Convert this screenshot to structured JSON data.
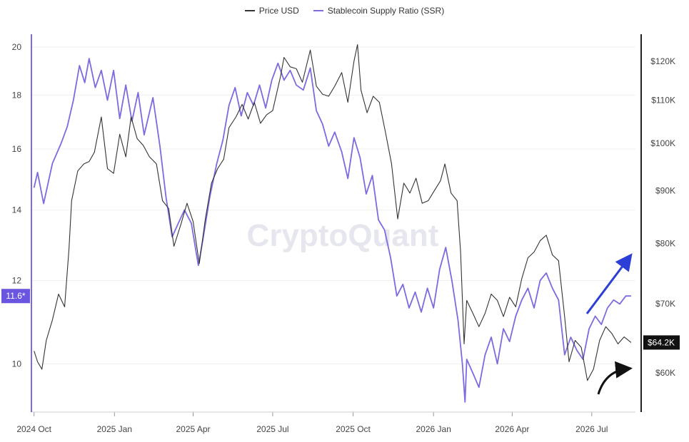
{
  "chart_data": {
    "type": "line",
    "title": "",
    "watermark": "CryptoQuant",
    "legend_position": "top-center",
    "legend": [
      {
        "label": "Price USD",
        "color": "#333333"
      },
      {
        "label": "Stablecoin Supply Ratio (SSR)",
        "color": "#7b6be0"
      }
    ],
    "x_ticks": [
      "2024 Oct",
      "2025 Jan",
      "2025 Apr",
      "2025 Jul",
      "2025 Oct",
      "2026 Jan",
      "2026 Apr",
      "2026 Jul"
    ],
    "x_range": [
      "2024-09-28",
      "2026-08-20"
    ],
    "y_left": {
      "ticks": [
        10,
        12,
        14,
        16,
        18,
        20
      ],
      "range": [
        9.0,
        20.5
      ],
      "log": true
    },
    "y_right": {
      "ticks": [
        "$60K",
        "$70K",
        "$80K",
        "$90K",
        "$100K",
        "$110K",
        "$120K"
      ],
      "tick_values": [
        60000,
        70000,
        80000,
        90000,
        100000,
        110000,
        120000
      ],
      "range": [
        55000,
        127000
      ],
      "log": true
    },
    "left_current_label": "11.6*",
    "right_current_label": "$64.2K",
    "grid": true,
    "series": [
      {
        "name": "Stablecoin Supply Ratio (SSR)",
        "axis": "left",
        "color": "#7b6be0",
        "points": [
          [
            "2024-10-01",
            14.7
          ],
          [
            "2024-10-05",
            15.2
          ],
          [
            "2024-10-12",
            14.2
          ],
          [
            "2024-10-22",
            15.5
          ],
          [
            "2024-11-01",
            16.2
          ],
          [
            "2024-11-08",
            16.8
          ],
          [
            "2024-11-15",
            17.8
          ],
          [
            "2024-11-22",
            19.2
          ],
          [
            "2024-11-28",
            18.5
          ],
          [
            "2024-12-03",
            19.5
          ],
          [
            "2024-12-10",
            18.3
          ],
          [
            "2024-12-17",
            19.0
          ],
          [
            "2024-12-24",
            17.8
          ],
          [
            "2024-12-31",
            19.0
          ],
          [
            "2025-01-07",
            17.1
          ],
          [
            "2025-01-14",
            18.4
          ],
          [
            "2025-01-21",
            17.0
          ],
          [
            "2025-01-28",
            18.1
          ],
          [
            "2025-02-04",
            16.5
          ],
          [
            "2025-02-14",
            17.9
          ],
          [
            "2025-02-22",
            16.1
          ],
          [
            "2025-03-01",
            14.4
          ],
          [
            "2025-03-08",
            13.2
          ],
          [
            "2025-03-15",
            13.6
          ],
          [
            "2025-03-22",
            14.0
          ],
          [
            "2025-03-30",
            13.6
          ],
          [
            "2025-04-07",
            12.4
          ],
          [
            "2025-04-12",
            13.1
          ],
          [
            "2025-04-20",
            14.4
          ],
          [
            "2025-04-28",
            15.5
          ],
          [
            "2025-05-05",
            16.3
          ],
          [
            "2025-05-12",
            17.6
          ],
          [
            "2025-05-19",
            18.3
          ],
          [
            "2025-05-26",
            17.2
          ],
          [
            "2025-06-02",
            18.1
          ],
          [
            "2025-06-09",
            17.6
          ],
          [
            "2025-06-16",
            18.4
          ],
          [
            "2025-06-23",
            17.5
          ],
          [
            "2025-06-30",
            18.6
          ],
          [
            "2025-07-07",
            19.3
          ],
          [
            "2025-07-14",
            18.6
          ],
          [
            "2025-07-21",
            19.0
          ],
          [
            "2025-07-28",
            18.4
          ],
          [
            "2025-08-05",
            18.2
          ],
          [
            "2025-08-13",
            19.1
          ],
          [
            "2025-08-20",
            17.4
          ],
          [
            "2025-08-27",
            16.9
          ],
          [
            "2025-09-03",
            16.1
          ],
          [
            "2025-09-10",
            16.6
          ],
          [
            "2025-09-18",
            15.9
          ],
          [
            "2025-09-25",
            15.0
          ],
          [
            "2025-10-02",
            16.4
          ],
          [
            "2025-10-09",
            15.7
          ],
          [
            "2025-10-16",
            14.5
          ],
          [
            "2025-10-23",
            15.1
          ],
          [
            "2025-10-30",
            13.7
          ],
          [
            "2025-11-06",
            13.4
          ],
          [
            "2025-11-13",
            12.6
          ],
          [
            "2025-11-20",
            11.6
          ],
          [
            "2025-11-27",
            11.9
          ],
          [
            "2025-12-04",
            11.3
          ],
          [
            "2025-12-11",
            11.7
          ],
          [
            "2025-12-18",
            11.2
          ],
          [
            "2025-12-25",
            11.8
          ],
          [
            "2026-01-01",
            11.3
          ],
          [
            "2026-01-08",
            12.3
          ],
          [
            "2026-01-15",
            12.9
          ],
          [
            "2026-01-22",
            12.0
          ],
          [
            "2026-01-29",
            11.0
          ],
          [
            "2026-02-03",
            10.0
          ],
          [
            "2026-02-06",
            9.2
          ],
          [
            "2026-02-08",
            10.1
          ],
          [
            "2026-02-15",
            9.8
          ],
          [
            "2026-02-22",
            9.5
          ],
          [
            "2026-03-01",
            10.2
          ],
          [
            "2026-03-08",
            10.6
          ],
          [
            "2026-03-15",
            10.0
          ],
          [
            "2026-03-22",
            10.8
          ],
          [
            "2026-03-29",
            10.5
          ],
          [
            "2026-04-05",
            11.1
          ],
          [
            "2026-04-12",
            11.5
          ],
          [
            "2026-04-19",
            11.8
          ],
          [
            "2026-04-26",
            11.3
          ],
          [
            "2026-05-03",
            12.0
          ],
          [
            "2026-05-10",
            12.2
          ],
          [
            "2026-05-17",
            11.8
          ],
          [
            "2026-05-24",
            11.5
          ],
          [
            "2026-05-31",
            10.2
          ],
          [
            "2026-06-07",
            10.6
          ],
          [
            "2026-06-14",
            10.3
          ],
          [
            "2026-06-21",
            10.1
          ],
          [
            "2026-06-28",
            10.8
          ],
          [
            "2026-07-05",
            11.1
          ],
          [
            "2026-07-12",
            10.9
          ],
          [
            "2026-07-19",
            11.3
          ],
          [
            "2026-07-26",
            11.5
          ],
          [
            "2026-08-02",
            11.4
          ],
          [
            "2026-08-09",
            11.6
          ],
          [
            "2026-08-15",
            11.6
          ]
        ]
      },
      {
        "name": "Price USD",
        "axis": "right",
        "color": "#333333",
        "points": [
          [
            "2024-10-01",
            63000
          ],
          [
            "2024-10-05",
            61500
          ],
          [
            "2024-10-10",
            60500
          ],
          [
            "2024-10-15",
            64500
          ],
          [
            "2024-10-22",
            67500
          ],
          [
            "2024-10-29",
            71500
          ],
          [
            "2024-11-05",
            69500
          ],
          [
            "2024-11-10",
            79000
          ],
          [
            "2024-11-13",
            88000
          ],
          [
            "2024-11-20",
            94000
          ],
          [
            "2024-11-27",
            95500
          ],
          [
            "2024-12-03",
            96000
          ],
          [
            "2024-12-09",
            98000
          ],
          [
            "2024-12-17",
            106000
          ],
          [
            "2024-12-24",
            94500
          ],
          [
            "2024-12-31",
            93500
          ],
          [
            "2025-01-07",
            102000
          ],
          [
            "2025-01-14",
            97000
          ],
          [
            "2025-01-20",
            106000
          ],
          [
            "2025-01-27",
            101000
          ],
          [
            "2025-02-03",
            99500
          ],
          [
            "2025-02-10",
            97000
          ],
          [
            "2025-02-18",
            95500
          ],
          [
            "2025-02-25",
            88000
          ],
          [
            "2025-03-04",
            86500
          ],
          [
            "2025-03-10",
            79500
          ],
          [
            "2025-03-18",
            83500
          ],
          [
            "2025-03-25",
            87500
          ],
          [
            "2025-04-01",
            84000
          ],
          [
            "2025-04-08",
            76500
          ],
          [
            "2025-04-15",
            84500
          ],
          [
            "2025-04-22",
            91500
          ],
          [
            "2025-04-29",
            94500
          ],
          [
            "2025-05-06",
            96500
          ],
          [
            "2025-05-12",
            103500
          ],
          [
            "2025-05-20",
            106000
          ],
          [
            "2025-05-27",
            109000
          ],
          [
            "2025-06-03",
            105500
          ],
          [
            "2025-06-10",
            109500
          ],
          [
            "2025-06-17",
            104500
          ],
          [
            "2025-06-24",
            106500
          ],
          [
            "2025-07-01",
            107500
          ],
          [
            "2025-07-10",
            116000
          ],
          [
            "2025-07-14",
            121000
          ],
          [
            "2025-07-21",
            118500
          ],
          [
            "2025-07-28",
            118000
          ],
          [
            "2025-08-04",
            114500
          ],
          [
            "2025-08-13",
            123000
          ],
          [
            "2025-08-20",
            113500
          ],
          [
            "2025-08-27",
            111500
          ],
          [
            "2025-09-03",
            111000
          ],
          [
            "2025-09-10",
            113500
          ],
          [
            "2025-09-18",
            117000
          ],
          [
            "2025-09-25",
            109500
          ],
          [
            "2025-10-02",
            120000
          ],
          [
            "2025-10-06",
            124500
          ],
          [
            "2025-10-10",
            112500
          ],
          [
            "2025-10-17",
            107000
          ],
          [
            "2025-10-24",
            111000
          ],
          [
            "2025-10-31",
            109500
          ],
          [
            "2025-11-07",
            102500
          ],
          [
            "2025-11-14",
            95500
          ],
          [
            "2025-11-21",
            84500
          ],
          [
            "2025-11-28",
            91500
          ],
          [
            "2025-12-05",
            89500
          ],
          [
            "2025-12-12",
            92500
          ],
          [
            "2025-12-19",
            87500
          ],
          [
            "2025-12-26",
            88000
          ],
          [
            "2026-01-02",
            90000
          ],
          [
            "2026-01-09",
            92000
          ],
          [
            "2026-01-14",
            95500
          ],
          [
            "2026-01-21",
            89500
          ],
          [
            "2026-01-28",
            88000
          ],
          [
            "2026-02-01",
            78500
          ],
          [
            "2026-02-05",
            64000
          ],
          [
            "2026-02-08",
            70500
          ],
          [
            "2026-02-15",
            68500
          ],
          [
            "2026-02-22",
            66500
          ],
          [
            "2026-03-01",
            68500
          ],
          [
            "2026-03-08",
            71500
          ],
          [
            "2026-03-15",
            70500
          ],
          [
            "2026-03-22",
            68000
          ],
          [
            "2026-03-29",
            71000
          ],
          [
            "2026-04-05",
            69500
          ],
          [
            "2026-04-12",
            74000
          ],
          [
            "2026-04-19",
            77500
          ],
          [
            "2026-04-26",
            78500
          ],
          [
            "2026-05-03",
            80500
          ],
          [
            "2026-05-10",
            81500
          ],
          [
            "2026-05-17",
            78000
          ],
          [
            "2026-05-24",
            77000
          ],
          [
            "2026-05-31",
            68000
          ],
          [
            "2026-06-05",
            61500
          ],
          [
            "2026-06-12",
            64500
          ],
          [
            "2026-06-19",
            63500
          ],
          [
            "2026-06-26",
            59000
          ],
          [
            "2026-07-03",
            60500
          ],
          [
            "2026-07-10",
            64500
          ],
          [
            "2026-07-17",
            66500
          ],
          [
            "2026-07-24",
            65500
          ],
          [
            "2026-07-31",
            64000
          ],
          [
            "2026-08-07",
            65000
          ],
          [
            "2026-08-15",
            64200
          ]
        ]
      }
    ]
  }
}
